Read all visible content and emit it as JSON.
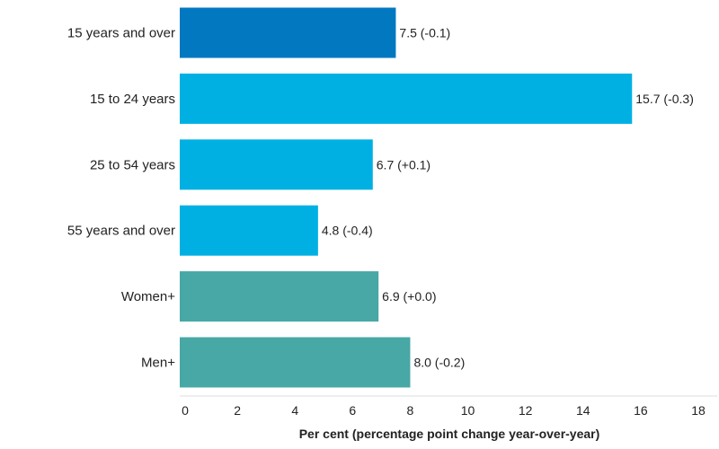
{
  "chart_data": {
    "type": "bar",
    "orientation": "horizontal",
    "categories": [
      "15 years and over",
      "15 to 24 years",
      "25 to 54 years",
      "55 years and over",
      "Women+",
      "Men+"
    ],
    "values": [
      7.5,
      15.7,
      6.7,
      4.8,
      6.9,
      8.0
    ],
    "data_labels": [
      "7.5 (-0.1)",
      "15.7 (-0.3)",
      "6.7 (+0.1)",
      "4.8 (-0.4)",
      "6.9 (+0.0)",
      "8.0 (-0.2)"
    ],
    "bar_colors": [
      "#0278c0",
      "#00b0e3",
      "#00b0e3",
      "#00b0e3",
      "#47a8a5",
      "#47a8a5"
    ],
    "xlabel": "Per cent (percentage point change year-over-year)",
    "xlim": [
      0,
      18
    ],
    "xticks": [
      "0",
      "2",
      "4",
      "6",
      "8",
      "10",
      "12",
      "14",
      "16",
      "18"
    ],
    "grid": false,
    "legend": "none"
  }
}
